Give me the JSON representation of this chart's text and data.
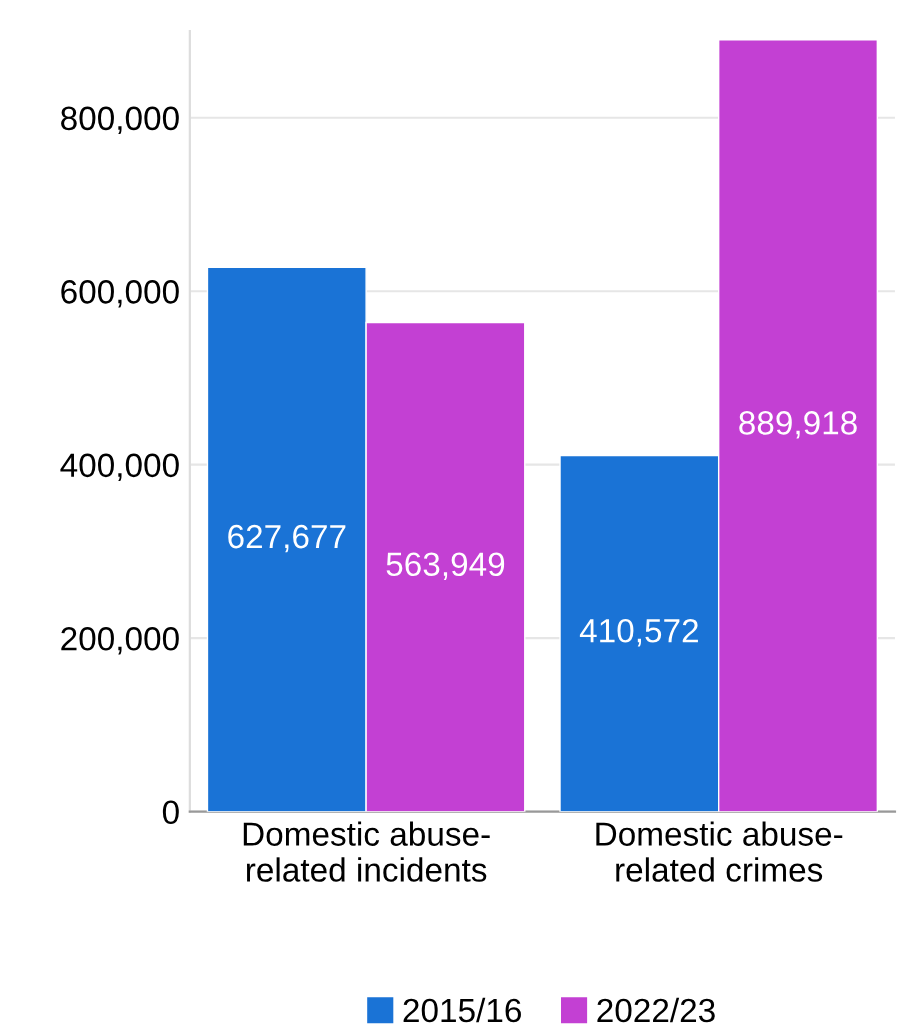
{
  "chart_data": {
    "type": "bar",
    "categories": [
      "Domestic abuse-\nrelated incidents",
      "Domestic abuse-\nrelated crimes"
    ],
    "series": [
      {
        "name": "2015/16",
        "color": "#1a73d6",
        "values": [
          627677,
          410572
        ],
        "value_labels": [
          "627,677",
          "410,572"
        ]
      },
      {
        "name": "2022/23",
        "color": "#c340d3",
        "values": [
          563949,
          889918
        ],
        "value_labels": [
          "563,949",
          "889,918"
        ]
      }
    ],
    "ylim": [
      0,
      900000
    ],
    "yticks": [
      {
        "value": 0,
        "label": "0"
      },
      {
        "value": 200000,
        "label": "200,000"
      },
      {
        "value": 400000,
        "label": "400,000"
      },
      {
        "value": 600000,
        "label": "600,000"
      },
      {
        "value": 800000,
        "label": "800,000"
      }
    ],
    "grid": "y",
    "legend": "bottom"
  }
}
